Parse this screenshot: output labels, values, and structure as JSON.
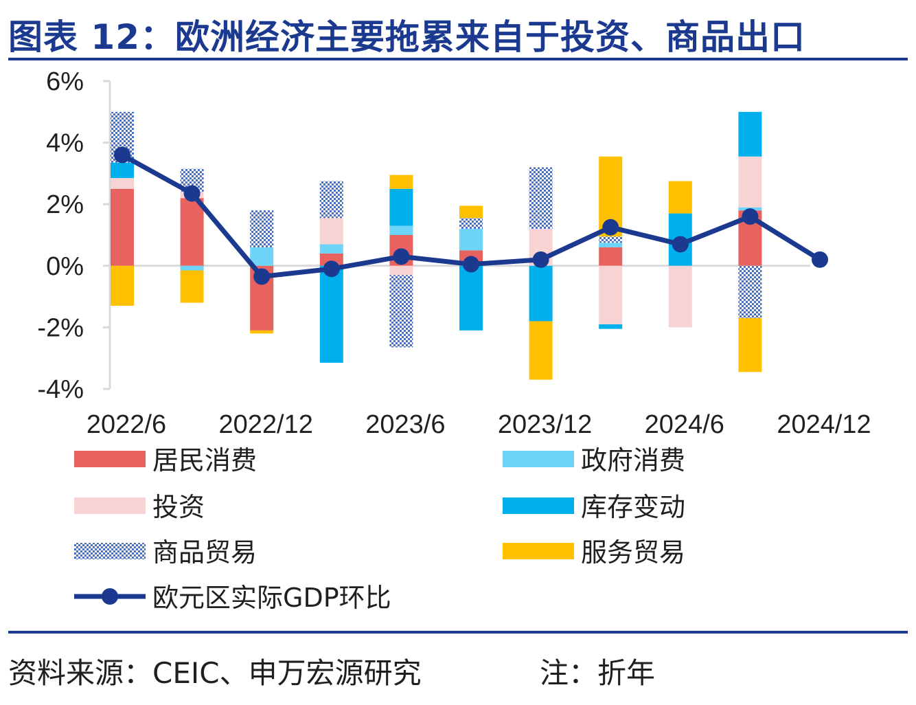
{
  "title": "图表 12：欧洲经济主要拖累来自于投资、商品出口",
  "source": "资料来源：CEIC、申万宏源研究",
  "note": "注：折年",
  "chart_data": {
    "type": "bar",
    "stacked": true,
    "categories": [
      "2022Q2",
      "2022Q3",
      "2022Q4",
      "2023Q1",
      "2023Q2",
      "2023Q3",
      "2023Q4",
      "2024Q1",
      "2024Q2",
      "2024Q3",
      "2024Q4"
    ],
    "x_tick_labels": [
      "2022/6",
      "2022/12",
      "2023/6",
      "2023/12",
      "2024/6",
      "2024/12"
    ],
    "y_tick_labels": [
      "6%",
      "4%",
      "2%",
      "0%",
      "-2%",
      "-4%"
    ],
    "ylim": [
      -4,
      6
    ],
    "ylabel_unit": "%",
    "series": [
      {
        "name": "居民消费",
        "color": "#e8625f",
        "values": [
          2.5,
          2.2,
          -2.1,
          0.4,
          1.0,
          0.5,
          0.0,
          0.6,
          0.0,
          1.8,
          null
        ]
      },
      {
        "name": "政府消费",
        "color": "#6dd3f7",
        "values": [
          0.0,
          -0.15,
          0.6,
          0.3,
          0.3,
          0.7,
          0.0,
          0.15,
          0.0,
          0.1,
          null
        ]
      },
      {
        "name": "投资",
        "color": "#f8d3d3",
        "values": [
          0.35,
          0.2,
          0.0,
          0.85,
          -0.3,
          0.0,
          1.2,
          -1.9,
          -2.0,
          1.65,
          null
        ]
      },
      {
        "name": "库存变动",
        "color": "#00b0ec",
        "values": [
          0.5,
          0.0,
          0.0,
          -3.15,
          1.2,
          -2.1,
          -1.8,
          -0.15,
          1.7,
          1.45,
          null
        ]
      },
      {
        "name": "商品贸易",
        "color": "#4a6fc4",
        "pattern": "checker",
        "values": [
          1.65,
          0.75,
          1.2,
          1.2,
          -2.35,
          0.35,
          2.0,
          0.2,
          0.0,
          -1.7,
          null
        ]
      },
      {
        "name": "服务贸易",
        "color": "#ffc000",
        "values": [
          -1.3,
          -1.05,
          -0.1,
          0.0,
          0.45,
          0.4,
          -1.9,
          2.6,
          1.05,
          -1.75,
          null
        ]
      }
    ],
    "line": {
      "name": "欧元区实际GDP环比",
      "color": "#1b3a8f",
      "values": [
        3.6,
        2.35,
        -0.35,
        -0.1,
        0.3,
        0.05,
        0.2,
        1.25,
        0.7,
        1.6,
        0.2
      ]
    }
  }
}
